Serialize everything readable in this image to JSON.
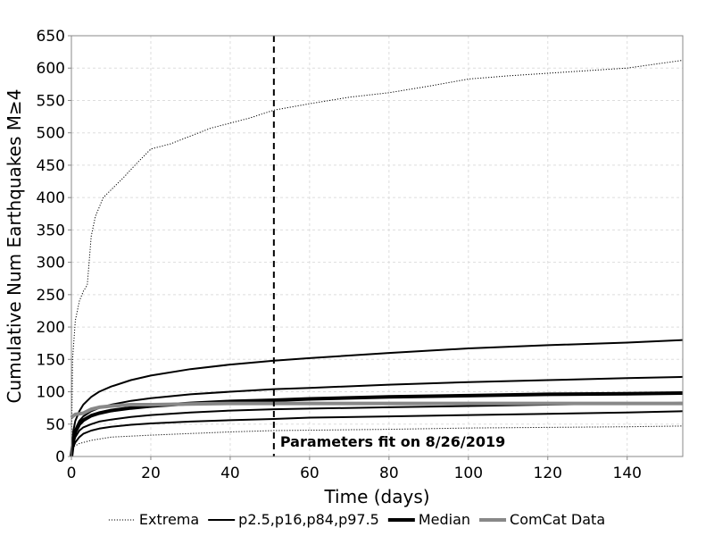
{
  "chart_data": {
    "type": "line",
    "title": "",
    "xlabel": "Time (days)",
    "ylabel": "Cumulative Num Earthquakes M≥4",
    "xlim": [
      0,
      154
    ],
    "ylim": [
      0,
      650
    ],
    "xticks": [
      0,
      20,
      40,
      60,
      80,
      100,
      120,
      140
    ],
    "yticks": [
      0,
      50,
      100,
      150,
      200,
      250,
      300,
      350,
      400,
      450,
      500,
      550,
      600,
      650
    ],
    "grid": true,
    "legend_position": "bottom",
    "annotation": {
      "x": 51,
      "text": "Parameters fit on 8/26/2019"
    },
    "series": [
      {
        "name": "Extrema",
        "style": "dotted",
        "color": "#000000",
        "x": [
          0,
          0.3,
          1,
          2,
          3,
          4,
          5,
          6,
          8,
          10,
          13,
          16,
          20,
          25,
          30,
          35,
          40,
          45,
          51,
          60,
          70,
          80,
          90,
          100,
          110,
          120,
          130,
          140,
          154
        ],
        "y": [
          0,
          150,
          210,
          240,
          255,
          265,
          340,
          370,
          400,
          412,
          430,
          450,
          475,
          483,
          495,
          507,
          515,
          523,
          535,
          545,
          555,
          562,
          572,
          583,
          588,
          592,
          596,
          600,
          612
        ]
      },
      {
        "name": "Extrema",
        "style": "dotted",
        "color": "#000000",
        "x": [
          0,
          0.5,
          2,
          5,
          10,
          20,
          40,
          51,
          80,
          100,
          120,
          140,
          154
        ],
        "y": [
          0,
          15,
          20,
          25,
          30,
          33,
          38,
          40,
          42,
          44,
          45,
          46,
          47
        ]
      },
      {
        "name": "p2.5,p16,p84,p97.5",
        "style": "solid",
        "color": "#000000",
        "x": [
          0,
          0.5,
          1,
          2,
          3,
          5,
          7,
          10,
          15,
          20,
          30,
          40,
          51,
          60,
          80,
          100,
          120,
          140,
          154
        ],
        "y": [
          0,
          40,
          55,
          70,
          80,
          92,
          100,
          108,
          118,
          125,
          135,
          142,
          148,
          152,
          160,
          167,
          172,
          176,
          180
        ]
      },
      {
        "name": "p2.5,p16,p84,p97.5",
        "style": "solid",
        "color": "#000000",
        "x": [
          0,
          0.5,
          1,
          2,
          3,
          5,
          7,
          10,
          15,
          20,
          30,
          40,
          51,
          60,
          80,
          100,
          120,
          140,
          154
        ],
        "y": [
          0,
          30,
          42,
          55,
          62,
          70,
          75,
          80,
          86,
          90,
          96,
          100,
          104,
          106,
          111,
          115,
          118,
          121,
          123
        ]
      },
      {
        "name": "p2.5,p16,p84,p97.5",
        "style": "solid",
        "color": "#000000",
        "x": [
          0,
          0.5,
          1,
          2,
          3,
          5,
          7,
          10,
          15,
          20,
          30,
          40,
          51,
          60,
          80,
          100,
          120,
          140,
          154
        ],
        "y": [
          0,
          20,
          30,
          40,
          45,
          50,
          54,
          57,
          61,
          64,
          68,
          71,
          73,
          74,
          76,
          78,
          80,
          82,
          83
        ]
      },
      {
        "name": "p2.5,p16,p84,p97.5",
        "style": "solid",
        "color": "#000000",
        "x": [
          0,
          0.5,
          1,
          2,
          3,
          5,
          7,
          10,
          15,
          20,
          30,
          40,
          51,
          60,
          80,
          100,
          120,
          140,
          154
        ],
        "y": [
          0,
          15,
          22,
          30,
          35,
          40,
          43,
          46,
          49,
          51,
          54,
          56,
          58,
          60,
          62,
          64,
          66,
          68,
          70
        ]
      },
      {
        "name": "Median",
        "style": "solid-thick",
        "color": "#000000",
        "x": [
          0,
          0.5,
          1,
          2,
          3,
          5,
          7,
          10,
          15,
          20,
          30,
          40,
          51,
          60,
          80,
          100,
          120,
          140,
          154
        ],
        "y": [
          0,
          25,
          38,
          50,
          56,
          63,
          67,
          71,
          75,
          78,
          82,
          85,
          87,
          89,
          92,
          94,
          96,
          97,
          98
        ]
      },
      {
        "name": "ComCat Data",
        "style": "solid-thick",
        "color": "#888888",
        "x": [
          0,
          0.3,
          1,
          2,
          3,
          4,
          5,
          7,
          10,
          15,
          20,
          30,
          40,
          51,
          60,
          80,
          100,
          120,
          140,
          154
        ],
        "y": [
          60,
          62,
          65,
          66,
          67,
          70,
          73,
          76,
          78,
          80,
          80,
          81,
          82,
          82,
          82,
          82,
          82,
          82,
          82,
          82
        ]
      }
    ]
  },
  "legend": {
    "items": [
      {
        "label": "Extrema",
        "style": "dotted",
        "color": "#000000"
      },
      {
        "label": "p2.5,p16,p84,p97.5",
        "style": "solid",
        "color": "#000000"
      },
      {
        "label": "Median",
        "style": "solid-thick",
        "color": "#000000"
      },
      {
        "label": "ComCat Data",
        "style": "solid-thick",
        "color": "#888888"
      }
    ]
  }
}
